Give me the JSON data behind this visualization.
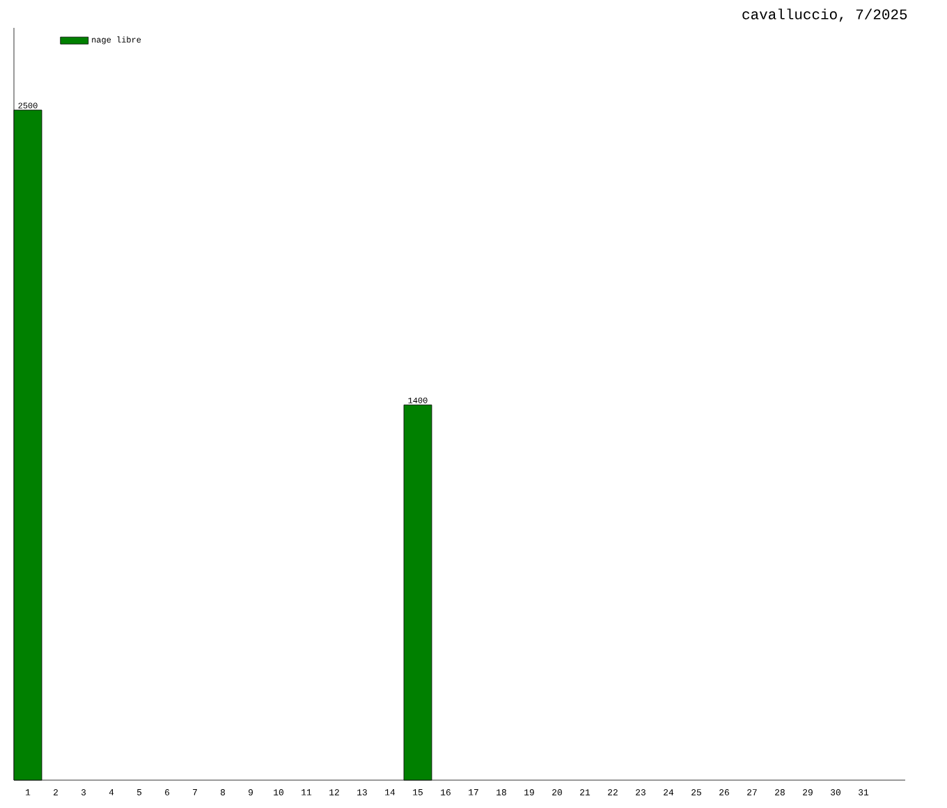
{
  "chart_data": {
    "type": "bar",
    "title": "cavalluccio, 7/2025",
    "categories": [
      "1",
      "2",
      "3",
      "4",
      "5",
      "6",
      "7",
      "8",
      "9",
      "10",
      "11",
      "12",
      "13",
      "14",
      "15",
      "16",
      "17",
      "18",
      "19",
      "20",
      "21",
      "22",
      "23",
      "24",
      "25",
      "26",
      "27",
      "28",
      "29",
      "30",
      "31"
    ],
    "series": [
      {
        "name": "nage libre",
        "color": "#008000",
        "values": [
          2500,
          null,
          null,
          null,
          null,
          null,
          null,
          null,
          null,
          null,
          null,
          null,
          null,
          null,
          1400,
          null,
          null,
          null,
          null,
          null,
          null,
          null,
          null,
          null,
          null,
          null,
          null,
          null,
          null,
          null,
          null
        ]
      }
    ],
    "data_labels": true,
    "legend": "top left",
    "grid": false
  }
}
